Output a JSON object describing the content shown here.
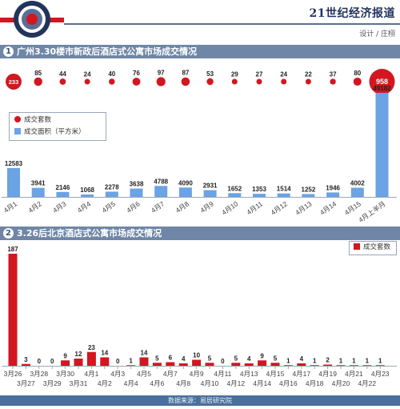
{
  "header": {
    "masthead": "21世纪经济报道",
    "credit": "设计 / 庄栩"
  },
  "section1": {
    "number": "1",
    "title": "广州3.30楼市新政后酒店式公寓市场成交情况"
  },
  "section2": {
    "number": "2",
    "title": "3.26后北京酒店式公寓市场成交情况"
  },
  "legend1": {
    "units": "成交套数",
    "area": "成交面积（平方米）"
  },
  "legend2": {
    "units": "成交套数"
  },
  "footer": {
    "source": "数据来源：易居研究院"
  },
  "colors": {
    "red": "#d31620",
    "blue": "#6ba3e4",
    "section_bar": "#6f86a6",
    "source_bar": "#4b6f9c"
  },
  "chart_data": [
    {
      "type": "bar",
      "title": "广州3.30楼市新政后酒店式公寓市场成交情况",
      "categories": [
        "4月1",
        "4月2",
        "4月3",
        "4月4",
        "4月5",
        "4月6",
        "4月7",
        "4月8",
        "4月9",
        "4月10",
        "4月11",
        "4月12",
        "4月13",
        "4月14",
        "4月15",
        "4月上半月"
      ],
      "series": [
        {
          "name": "成交套数",
          "values": [
            233,
            85,
            44,
            24,
            40,
            76,
            97,
            87,
            53,
            29,
            27,
            24,
            22,
            37,
            80,
            958
          ]
        },
        {
          "name": "成交面积（平方米）",
          "values": [
            12583,
            3941,
            2146,
            1068,
            2278,
            3638,
            4788,
            4090,
            2931,
            1652,
            1353,
            1514,
            1252,
            1946,
            4002,
            49182
          ]
        }
      ]
    },
    {
      "type": "bar",
      "title": "3.26后北京酒店式公寓市场成交情况",
      "categories": [
        "3月26",
        "3月27",
        "3月28",
        "3月29",
        "3月30",
        "3月31",
        "4月1",
        "4月2",
        "4月3",
        "4月4",
        "4月5",
        "4月6",
        "4月7",
        "4月8",
        "4月9",
        "4月10",
        "4月11",
        "4月12",
        "4月13",
        "4月14",
        "4月15",
        "4月16",
        "4月17",
        "4月18",
        "4月19",
        "4月20",
        "4月21",
        "4月22",
        "4月23"
      ],
      "series": [
        {
          "name": "成交套数",
          "values": [
            187,
            3,
            0,
            0,
            9,
            12,
            23,
            14,
            0,
            1,
            14,
            5,
            6,
            4,
            10,
            5,
            0,
            5,
            4,
            9,
            5,
            1,
            4,
            1,
            2,
            1,
            1,
            1,
            1
          ]
        }
      ]
    }
  ]
}
